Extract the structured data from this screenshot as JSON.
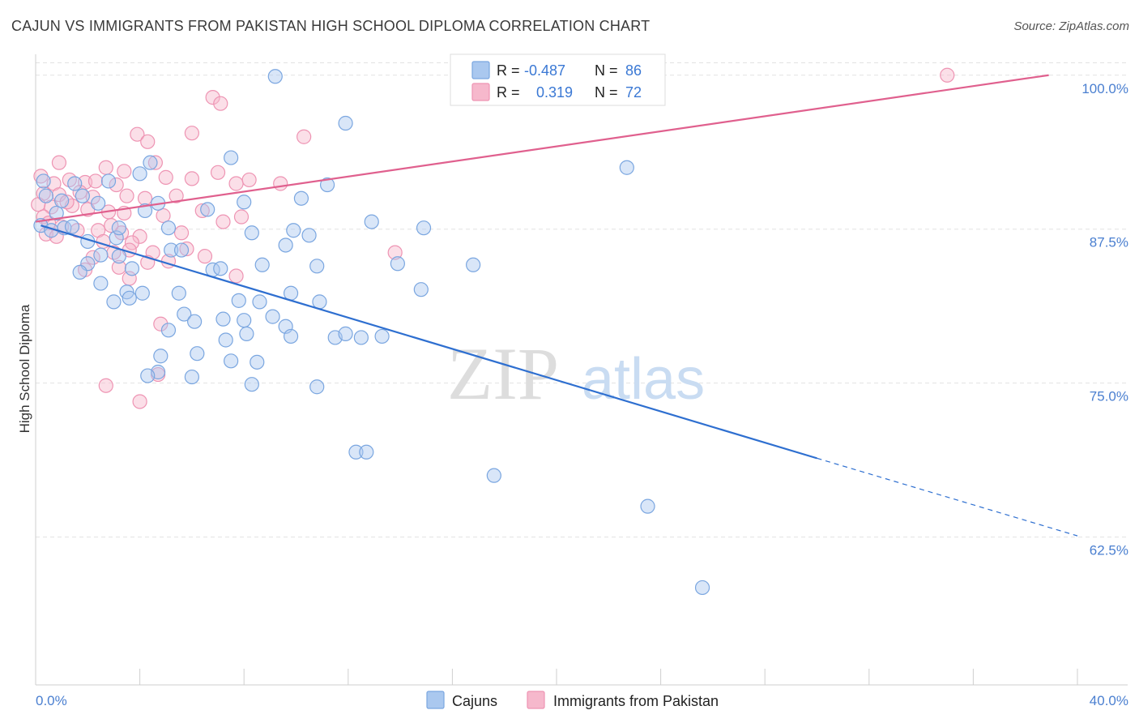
{
  "header": {
    "title": "CAJUN VS IMMIGRANTS FROM PAKISTAN HIGH SCHOOL DIPLOMA CORRELATION CHART",
    "source": "Source: ZipAtlas.com"
  },
  "watermark": {
    "zip": "ZIP",
    "atlas": "atlas"
  },
  "legend": {
    "rows": [
      {
        "r_label": "R =",
        "r_value": "-0.487",
        "n_label": "N =",
        "n_value": "86"
      },
      {
        "r_label": "R =",
        "r_value": "0.319",
        "n_label": "N =",
        "n_value": "72"
      }
    ]
  },
  "bottom_legend": {
    "items": [
      "Cajuns",
      "Immigrants from Pakistan"
    ]
  },
  "colors": {
    "cajun_fill": "#aac8ef",
    "cajun_stroke": "#7aa6e0",
    "cajun_line": "#2e6fd0",
    "pak_fill": "#f6b8cc",
    "pak_stroke": "#ee94b3",
    "pak_line": "#e0608e",
    "tick_label": "#4a7fd0",
    "grid": "#e2e2e2"
  },
  "chart_data": {
    "type": "scatter",
    "title": "CAJUN VS IMMIGRANTS FROM PAKISTAN HIGH SCHOOL DIPLOMA CORRELATION CHART",
    "xlabel": "",
    "ylabel": "High School Diploma",
    "xlim": [
      0,
      40
    ],
    "ylim": [
      50.5,
      101.3
    ],
    "x_tick_labels": [
      "0.0%",
      "40.0%"
    ],
    "y_ticks": [
      62.5,
      75.0,
      87.5,
      100.0
    ],
    "y_tick_labels": [
      "62.5%",
      "75.0%",
      "87.5%",
      "100.0%"
    ],
    "grid": true,
    "legend_position": "top-center",
    "series": [
      {
        "name": "Cajuns",
        "R": -0.487,
        "N": 86,
        "trend": {
          "x": [
            0.2,
            30.0
          ],
          "y": [
            87.8,
            68.9
          ],
          "dashed_to": [
            40.0,
            62.6
          ]
        },
        "points": [
          [
            9.2,
            99.9
          ],
          [
            11.9,
            96.1
          ],
          [
            7.5,
            93.3
          ],
          [
            22.7,
            92.5
          ],
          [
            4.0,
            92.0
          ],
          [
            0.3,
            91.4
          ],
          [
            4.4,
            92.9
          ],
          [
            11.2,
            91.1
          ],
          [
            0.4,
            90.2
          ],
          [
            1.0,
            89.8
          ],
          [
            1.5,
            91.2
          ],
          [
            2.8,
            91.4
          ],
          [
            2.4,
            89.6
          ],
          [
            4.2,
            89.0
          ],
          [
            6.6,
            89.1
          ],
          [
            8.0,
            89.7
          ],
          [
            10.2,
            90.0
          ],
          [
            0.2,
            87.8
          ],
          [
            0.6,
            87.4
          ],
          [
            1.1,
            87.6
          ],
          [
            1.4,
            87.7
          ],
          [
            2.0,
            86.5
          ],
          [
            3.1,
            86.8
          ],
          [
            5.1,
            87.6
          ],
          [
            8.3,
            87.2
          ],
          [
            9.9,
            87.4
          ],
          [
            14.9,
            87.6
          ],
          [
            2.5,
            85.4
          ],
          [
            3.2,
            85.3
          ],
          [
            5.2,
            85.8
          ],
          [
            5.6,
            85.8
          ],
          [
            2.0,
            84.7
          ],
          [
            1.7,
            84.0
          ],
          [
            3.7,
            84.3
          ],
          [
            6.8,
            84.2
          ],
          [
            7.1,
            84.3
          ],
          [
            8.7,
            84.6
          ],
          [
            10.8,
            84.5
          ],
          [
            13.9,
            84.7
          ],
          [
            16.8,
            84.6
          ],
          [
            2.5,
            83.1
          ],
          [
            3.5,
            82.4
          ],
          [
            5.5,
            82.3
          ],
          [
            3.0,
            81.6
          ],
          [
            3.6,
            81.9
          ],
          [
            4.1,
            82.3
          ],
          [
            8.6,
            81.6
          ],
          [
            9.8,
            82.3
          ],
          [
            10.9,
            81.6
          ],
          [
            14.8,
            82.6
          ],
          [
            5.7,
            80.6
          ],
          [
            6.1,
            80.0
          ],
          [
            7.2,
            80.2
          ],
          [
            8.0,
            80.1
          ],
          [
            9.6,
            79.6
          ],
          [
            5.1,
            79.3
          ],
          [
            8.1,
            79.0
          ],
          [
            9.8,
            78.8
          ],
          [
            11.5,
            78.7
          ],
          [
            11.9,
            79.0
          ],
          [
            12.5,
            78.7
          ],
          [
            13.3,
            78.8
          ],
          [
            4.8,
            77.2
          ],
          [
            6.2,
            77.4
          ],
          [
            7.5,
            76.8
          ],
          [
            8.5,
            76.7
          ],
          [
            4.7,
            75.9
          ],
          [
            4.3,
            75.6
          ],
          [
            6.0,
            75.5
          ],
          [
            8.3,
            74.9
          ],
          [
            10.8,
            74.7
          ],
          [
            12.3,
            69.4
          ],
          [
            12.7,
            69.4
          ],
          [
            17.6,
            67.5
          ],
          [
            23.5,
            65.0
          ],
          [
            25.6,
            58.4
          ],
          [
            7.8,
            81.7
          ],
          [
            9.6,
            86.2
          ],
          [
            3.2,
            87.6
          ],
          [
            0.8,
            88.8
          ],
          [
            1.8,
            90.2
          ],
          [
            4.7,
            89.6
          ],
          [
            7.3,
            78.5
          ],
          [
            9.1,
            80.4
          ],
          [
            10.5,
            87.0
          ],
          [
            12.9,
            88.1
          ]
        ]
      },
      {
        "name": "Immigrants from Pakistan",
        "R": 0.319,
        "N": 72,
        "trend": {
          "x": [
            0.0,
            38.9
          ],
          "y": [
            88.1,
            100.0
          ]
        },
        "points": [
          [
            16.5,
            99.9
          ],
          [
            35.0,
            100.0
          ],
          [
            6.8,
            98.2
          ],
          [
            7.1,
            97.7
          ],
          [
            6.0,
            95.3
          ],
          [
            3.9,
            95.2
          ],
          [
            4.3,
            94.6
          ],
          [
            10.3,
            95.0
          ],
          [
            0.9,
            92.9
          ],
          [
            2.7,
            92.5
          ],
          [
            3.4,
            92.2
          ],
          [
            4.6,
            92.9
          ],
          [
            7.0,
            92.1
          ],
          [
            0.2,
            91.8
          ],
          [
            0.7,
            91.2
          ],
          [
            1.3,
            91.5
          ],
          [
            1.9,
            91.3
          ],
          [
            2.3,
            91.4
          ],
          [
            3.1,
            91.1
          ],
          [
            5.0,
            91.7
          ],
          [
            6.0,
            91.6
          ],
          [
            7.7,
            91.2
          ],
          [
            9.4,
            91.2
          ],
          [
            0.3,
            90.4
          ],
          [
            0.9,
            90.3
          ],
          [
            1.7,
            90.5
          ],
          [
            2.2,
            90.1
          ],
          [
            3.5,
            90.2
          ],
          [
            4.2,
            90.0
          ],
          [
            5.4,
            90.2
          ],
          [
            0.1,
            89.5
          ],
          [
            0.6,
            89.3
          ],
          [
            1.4,
            89.4
          ],
          [
            2.0,
            89.1
          ],
          [
            2.8,
            88.9
          ],
          [
            3.4,
            88.8
          ],
          [
            4.9,
            88.6
          ],
          [
            6.4,
            89.0
          ],
          [
            7.2,
            88.1
          ],
          [
            0.3,
            88.5
          ],
          [
            0.5,
            88.0
          ],
          [
            1.0,
            87.7
          ],
          [
            1.6,
            87.4
          ],
          [
            2.4,
            87.4
          ],
          [
            3.3,
            87.2
          ],
          [
            4.0,
            86.9
          ],
          [
            5.6,
            87.2
          ],
          [
            7.9,
            88.5
          ],
          [
            0.4,
            87.1
          ],
          [
            0.8,
            86.9
          ],
          [
            2.6,
            86.5
          ],
          [
            3.7,
            86.4
          ],
          [
            4.5,
            85.6
          ],
          [
            5.8,
            85.9
          ],
          [
            6.5,
            85.3
          ],
          [
            2.2,
            85.2
          ],
          [
            3.0,
            85.6
          ],
          [
            3.6,
            85.8
          ],
          [
            4.3,
            84.8
          ],
          [
            1.9,
            84.2
          ],
          [
            3.2,
            84.4
          ],
          [
            3.6,
            83.5
          ],
          [
            7.7,
            83.7
          ],
          [
            13.8,
            85.6
          ],
          [
            4.8,
            79.8
          ],
          [
            4.7,
            75.7
          ],
          [
            2.7,
            74.8
          ],
          [
            4.0,
            73.5
          ],
          [
            2.9,
            87.8
          ],
          [
            1.2,
            89.7
          ],
          [
            5.1,
            84.9
          ],
          [
            8.2,
            91.5
          ]
        ]
      }
    ]
  }
}
